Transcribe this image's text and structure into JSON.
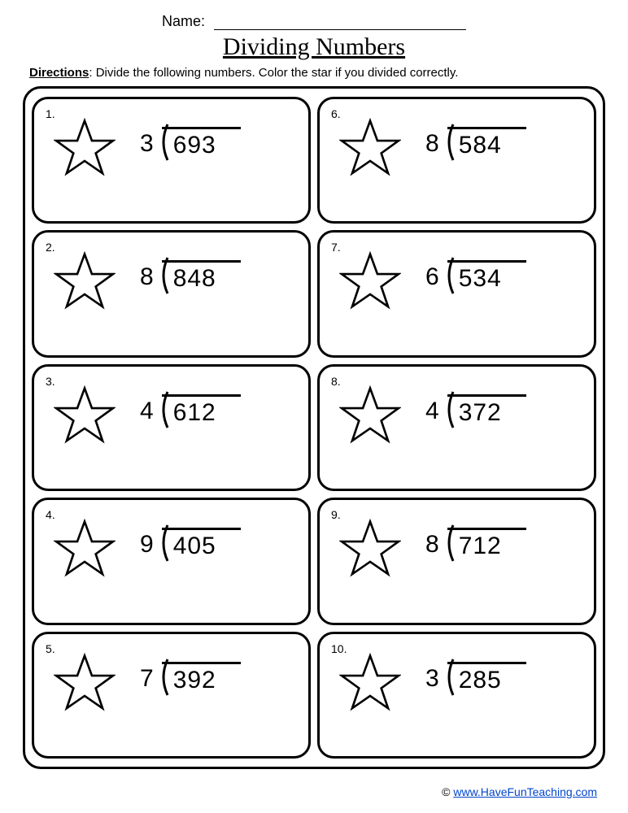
{
  "header": {
    "name_label": "Name:",
    "title": "Dividing Numbers",
    "directions_label": "Directions",
    "directions_text": ": Divide the following numbers.  Color the star if you divided correctly."
  },
  "style": {
    "background_color": "#ffffff",
    "text_color": "#000000",
    "border_color": "#000000",
    "border_width": 3,
    "cell_border_radius": 20,
    "outer_border_radius": 22,
    "star_stroke": "#000000",
    "star_fill": "none",
    "star_stroke_width": 3.5,
    "link_color": "#0044cc",
    "title_fontsize": 30,
    "body_fontsize": 15,
    "problem_fontsize": 30,
    "grid_cols": 2,
    "grid_rows": 5
  },
  "problems": [
    {
      "number": "1.",
      "divisor": "3",
      "dividend": "693"
    },
    {
      "number": "6.",
      "divisor": "8",
      "dividend": "584"
    },
    {
      "number": "2.",
      "divisor": "8",
      "dividend": "848"
    },
    {
      "number": "7.",
      "divisor": "6",
      "dividend": "534"
    },
    {
      "number": "3.",
      "divisor": "4",
      "dividend": "612"
    },
    {
      "number": "8.",
      "divisor": "4",
      "dividend": "372"
    },
    {
      "number": "4.",
      "divisor": "9",
      "dividend": "405"
    },
    {
      "number": "9.",
      "divisor": "8",
      "dividend": "712"
    },
    {
      "number": "5.",
      "divisor": "7",
      "dividend": "392"
    },
    {
      "number": "10.",
      "divisor": "3",
      "dividend": "285"
    }
  ],
  "footer": {
    "copyright": "© ",
    "link_text": "www.HaveFunTeaching.com"
  }
}
